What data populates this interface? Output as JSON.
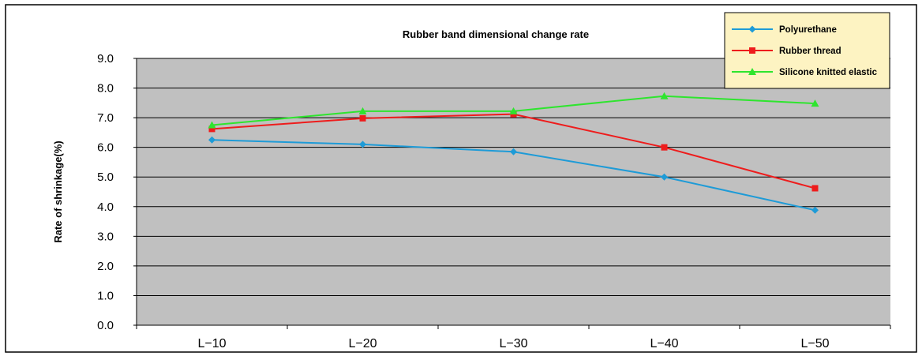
{
  "chart_data": {
    "type": "line",
    "title": "Rubber band dimensional change rate",
    "xlabel": "",
    "ylabel": "Rate of shrinkage(%)",
    "categories": [
      "L−10",
      "L−20",
      "L−30",
      "L−40",
      "L−50"
    ],
    "ylim": [
      0,
      9
    ],
    "yticks": [
      "0.0",
      "1.0",
      "2.0",
      "3.0",
      "4.0",
      "5.0",
      "6.0",
      "7.0",
      "8.0",
      "9.0"
    ],
    "grid": true,
    "legend_position": "top-right",
    "plot_background": "#c0c0c0",
    "series": [
      {
        "name": "Polyurethane",
        "values": [
          6.25,
          6.1,
          5.85,
          5.0,
          3.88
        ],
        "color": "#1e9bd7",
        "marker": "diamond"
      },
      {
        "name": "Rubber thread",
        "values": [
          6.62,
          6.98,
          7.12,
          6.0,
          4.62
        ],
        "color": "#ee1c1c",
        "marker": "square"
      },
      {
        "name": "Silicone knitted elastic",
        "values": [
          6.75,
          7.22,
          7.22,
          7.73,
          7.48
        ],
        "color": "#2ee52e",
        "marker": "triangle"
      }
    ]
  }
}
